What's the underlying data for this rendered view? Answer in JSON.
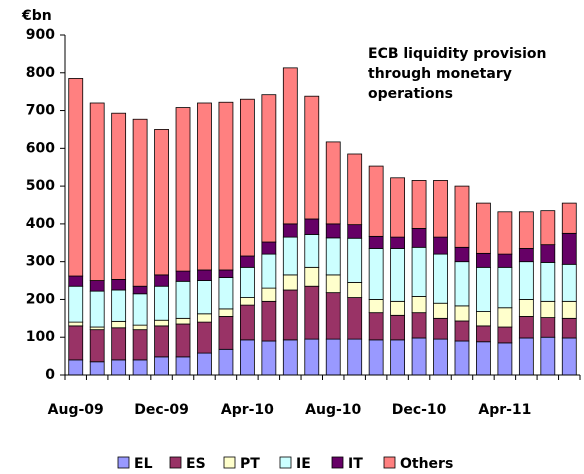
{
  "chart_data": {
    "type": "stacked_bar",
    "title": "ECB liquidity provision through monetary operations",
    "y_label": "€bn",
    "categories": [
      "Aug-09",
      null,
      null,
      null,
      "Dec-09",
      null,
      null,
      null,
      "Apr-10",
      null,
      null,
      null,
      "Aug-10",
      null,
      null,
      null,
      "Dec-10",
      null,
      null,
      null,
      "Apr-11",
      null,
      null,
      null
    ],
    "series": [
      {
        "name": "EL",
        "color": "#9999ff",
        "values": [
          40,
          35,
          40,
          40,
          48,
          48,
          58,
          68,
          93,
          90,
          93,
          95,
          95,
          95,
          93,
          93,
          98,
          95,
          90,
          88,
          85,
          98,
          100,
          98
        ]
      },
      {
        "name": "ES",
        "color": "#993366",
        "values": [
          90,
          85,
          85,
          80,
          82,
          87,
          82,
          87,
          92,
          105,
          132,
          140,
          123,
          110,
          72,
          65,
          67,
          55,
          53,
          42,
          42,
          57,
          52,
          52
        ]
      },
      {
        "name": "PT",
        "color": "#ffffcc",
        "values": [
          10,
          7,
          17,
          12,
          15,
          15,
          22,
          20,
          20,
          35,
          40,
          50,
          47,
          40,
          35,
          37,
          43,
          40,
          40,
          38,
          51,
          45,
          43,
          45
        ]
      },
      {
        "name": "IE",
        "color": "#ccffff",
        "values": [
          95,
          95,
          83,
          83,
          90,
          98,
          88,
          83,
          80,
          90,
          100,
          87,
          98,
          117,
          135,
          140,
          130,
          130,
          117,
          117,
          107,
          100,
          103,
          98
        ]
      },
      {
        "name": "IT",
        "color": "#660066",
        "values": [
          27,
          28,
          28,
          20,
          30,
          27,
          28,
          20,
          30,
          32,
          35,
          41,
          37,
          36,
          32,
          30,
          50,
          45,
          38,
          37,
          35,
          35,
          47,
          82
        ]
      },
      {
        "name": "Others",
        "color": "#ff8080",
        "values": [
          523,
          470,
          440,
          442,
          385,
          433,
          442,
          444,
          415,
          390,
          413,
          325,
          217,
          187,
          186,
          157,
          127,
          150,
          162,
          133,
          112,
          97,
          90,
          80
        ]
      }
    ],
    "ylim": [
      0,
      900
    ],
    "yticks": [
      0,
      100,
      200,
      300,
      400,
      500,
      600,
      700,
      800,
      900
    ],
    "legend": "bottom"
  }
}
